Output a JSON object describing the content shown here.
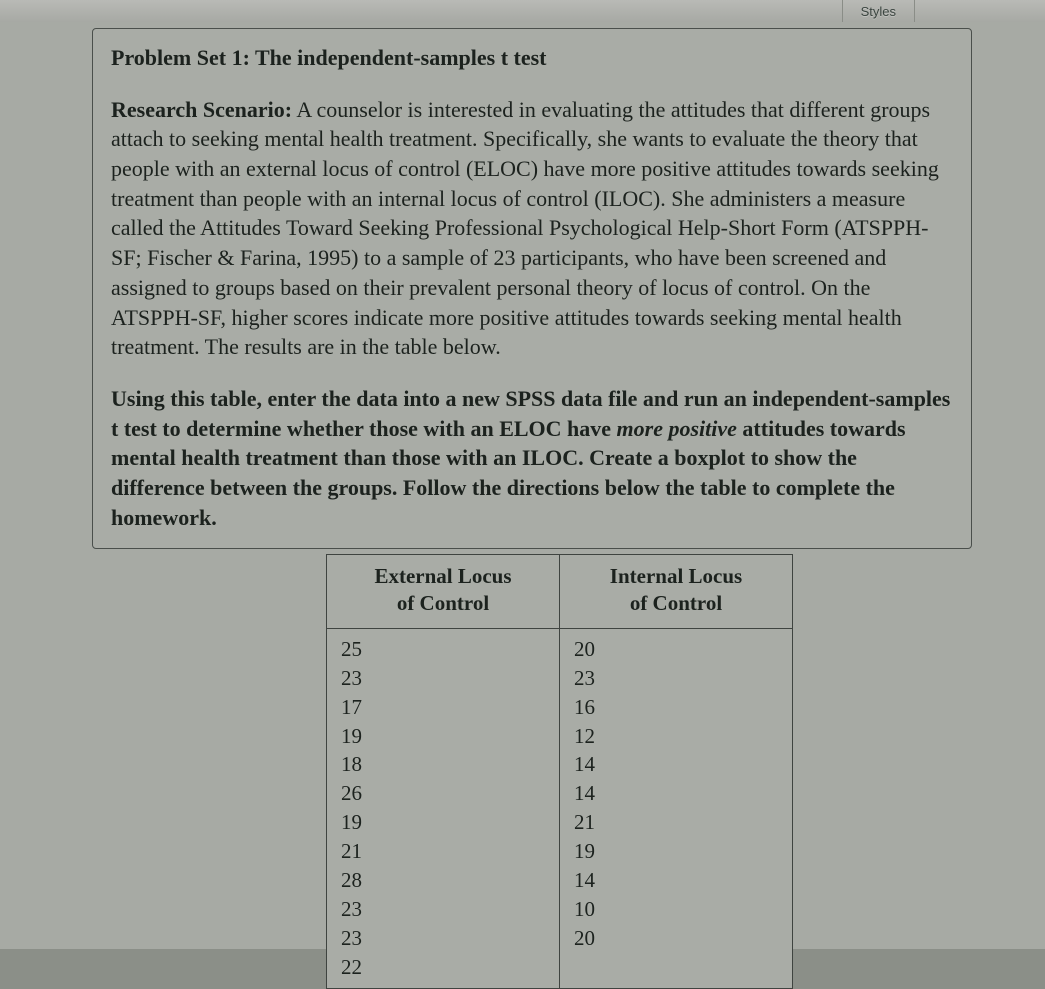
{
  "toolbar": {
    "styles_label": "Styles"
  },
  "problem": {
    "title_prefix": "Problem Set 1: ",
    "title_rest": "The independent-samples t test",
    "scenario_label": "Research Scenario:",
    "scenario_text": " A counselor is interested in evaluating the attitudes that different groups attach to seeking mental health treatment. Specifically, she wants to evaluate the theory that people with an external locus of control (ELOC) have more positive attitudes towards seeking treatment than people with an internal locus of control (ILOC). She administers a measure called the Attitudes Toward Seeking Professional Psychological Help-Short Form (ATSPPH-SF; Fischer & Farina, 1995) to a sample of 23 participants, who have been screened and assigned to groups based on their prevalent personal theory of locus of control. On the ATSPPH-SF, higher scores indicate more positive attitudes towards seeking mental health treatment. The results are in the table below.",
    "instr_part1": "Using this table, enter the data into a new SPSS data file and run an independent-samples t test to determine whether those with an ELOC have ",
    "instr_italic": "more positive",
    "instr_part2": " attitudes towards mental health treatment than those with an ILOC. Create a boxplot to show the difference between the groups. Follow the directions below the table to complete the homework."
  },
  "data_table": {
    "type": "table",
    "columns": [
      {
        "header_line1": "External Locus",
        "header_line2": "of Control"
      },
      {
        "header_line1": "Internal Locus",
        "header_line2": "of Control"
      }
    ],
    "eloc_values": "25\n23\n17\n19\n18\n26\n19\n21\n28\n23\n23\n22",
    "iloc_values": "20\n23\n16\n12\n14\n14\n21\n19\n14\n10\n20",
    "border_color": "#3f4440",
    "background_color": "#a9aca6",
    "font_size_pt": 16
  },
  "styling": {
    "page_background": "#a7aaa4",
    "box_border_color": "#4a4f4b",
    "text_color": "#1c221e",
    "body_font": "Times New Roman",
    "body_font_size_pt": 16
  }
}
